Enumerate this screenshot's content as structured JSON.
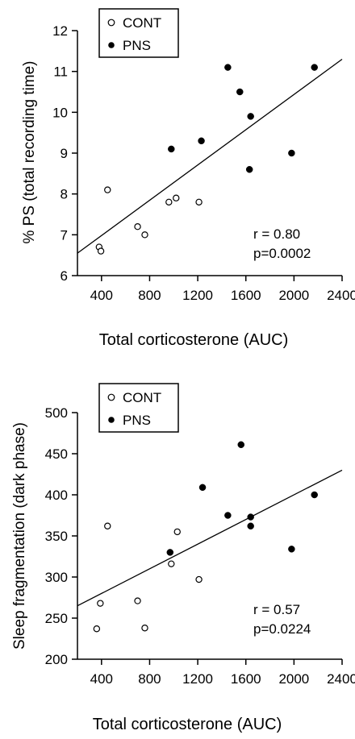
{
  "chart_data": [
    {
      "type": "scatter",
      "xlabel": "Total corticosterone (AUC)",
      "ylabel": "% PS (total recording time)",
      "xlim": [
        200,
        2400
      ],
      "ylim": [
        6,
        12
      ],
      "xticks": [
        400,
        800,
        1200,
        1600,
        2000,
        2400
      ],
      "yticks": [
        6,
        7,
        8,
        9,
        10,
        11,
        12
      ],
      "legend_position": "top-left",
      "series": [
        {
          "name": "CONT",
          "marker": "open-circle",
          "x": [
            380,
            395,
            450,
            700,
            760,
            960,
            1020,
            1210
          ],
          "y": [
            6.7,
            6.6,
            8.1,
            7.2,
            7.0,
            7.8,
            7.9,
            7.8
          ]
        },
        {
          "name": "PNS",
          "marker": "filled-circle",
          "x": [
            980,
            1230,
            1450,
            1550,
            1640,
            1630,
            1980,
            2170
          ],
          "y": [
            9.1,
            9.3,
            11.1,
            10.5,
            9.9,
            8.6,
            9.0,
            11.1
          ]
        }
      ],
      "regression_line": {
        "x": [
          200,
          2400
        ],
        "y": [
          6.55,
          11.3
        ]
      },
      "annotations": [
        "r = 0.80",
        "p=0.0002"
      ]
    },
    {
      "type": "scatter",
      "xlabel": "Total corticosterone (AUC)",
      "ylabel": "Sleep fragmentation (dark phase)",
      "xlim": [
        200,
        2400
      ],
      "ylim": [
        200,
        500
      ],
      "xticks": [
        400,
        800,
        1200,
        1600,
        2000,
        2400
      ],
      "yticks": [
        200,
        250,
        300,
        350,
        400,
        450,
        500
      ],
      "legend_position": "top-left",
      "series": [
        {
          "name": "CONT",
          "marker": "open-circle",
          "x": [
            360,
            390,
            450,
            700,
            760,
            980,
            1030,
            1210
          ],
          "y": [
            237,
            268,
            362,
            271,
            238,
            316,
            355,
            297
          ]
        },
        {
          "name": "PNS",
          "marker": "filled-circle",
          "x": [
            970,
            1240,
            1450,
            1560,
            1640,
            1640,
            1980,
            2170
          ],
          "y": [
            330,
            409,
            375,
            461,
            373,
            362,
            334,
            400
          ]
        }
      ],
      "regression_line": {
        "x": [
          200,
          2400
        ],
        "y": [
          265,
          430
        ]
      },
      "annotations": [
        "r = 0.57",
        "p=0.0224"
      ]
    }
  ],
  "colors": {
    "axis": "#000000",
    "open_marker_fill": "#ffffff",
    "filled_marker": "#000000"
  }
}
